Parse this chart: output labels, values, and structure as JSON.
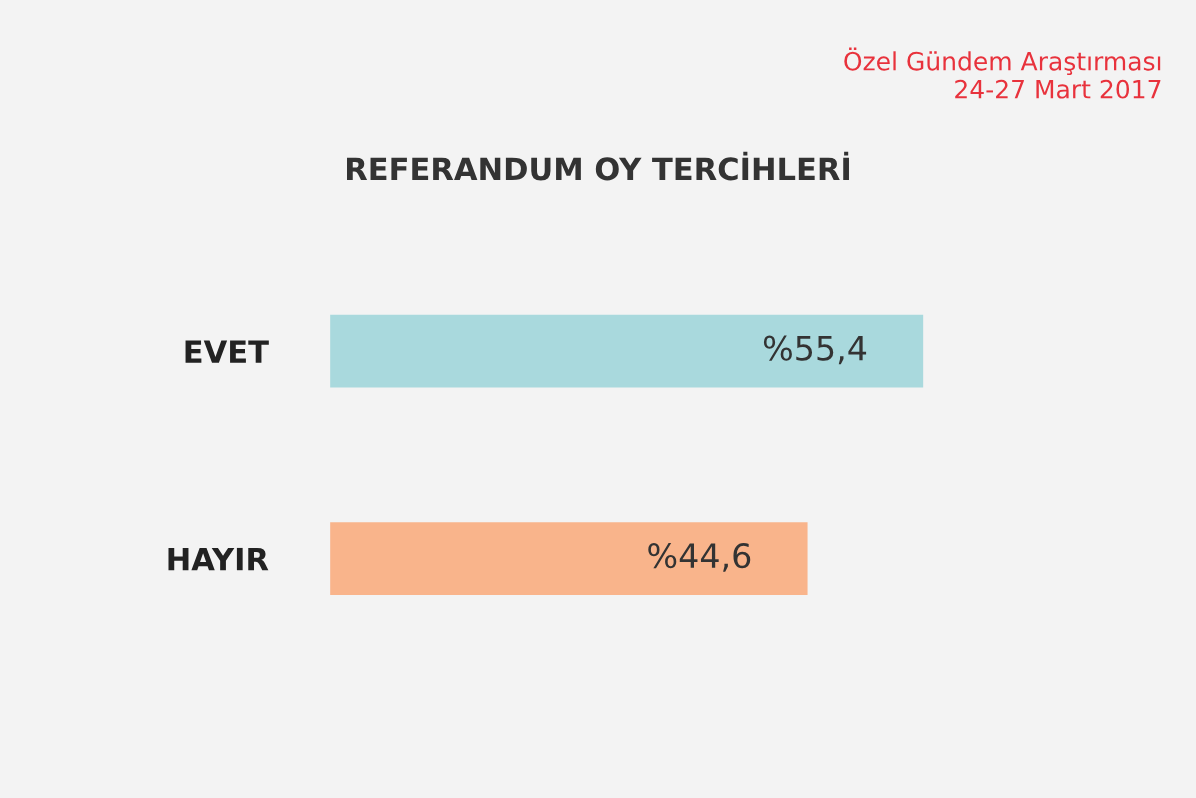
{
  "chart_data": {
    "type": "bar",
    "orientation": "horizontal",
    "title": "REFERANDUM OY TERCİHLERİ",
    "subtitle": "Özel Gündem Araştırması\n24-27 Mart 2017",
    "categories": [
      "EVET",
      "HAYIR"
    ],
    "values": [
      55.4,
      44.6
    ],
    "colors": [
      "#a9d9dd",
      "#f9b48b"
    ],
    "value_labels": [
      "%55,4",
      "%44,6"
    ]
  }
}
